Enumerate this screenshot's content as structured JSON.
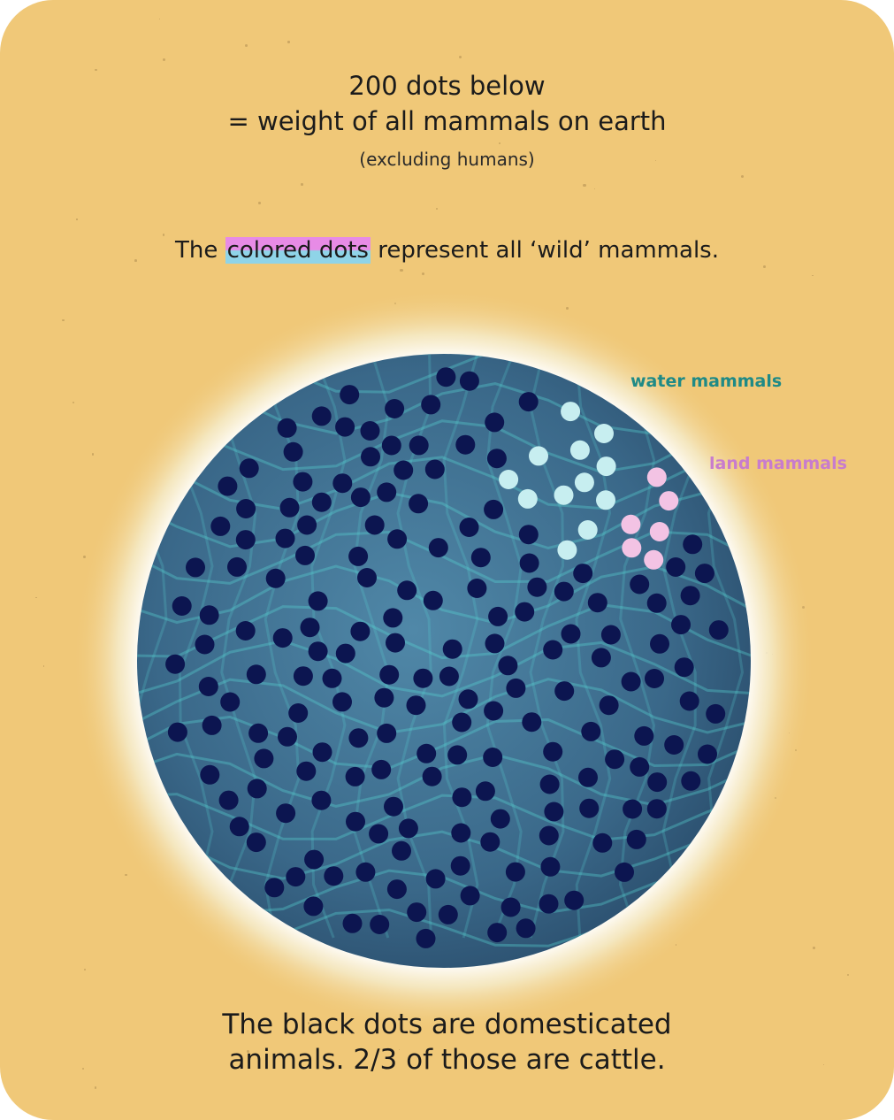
{
  "header": {
    "line1": "200 dots below",
    "line2": "= weight of all mammals on earth",
    "note": "(excluding humans)"
  },
  "intro": {
    "before": "The ",
    "highlight": "colored dots",
    "after": " represent all ‘wild’ mammals."
  },
  "legend": {
    "water": "water mammals",
    "land": "land mammals"
  },
  "footer": {
    "line1": "The black dots are domesticated",
    "line2": "animals. 2/3 of those are cattle."
  },
  "colors": {
    "background": "#f0c878",
    "globe": "#3f6e8f",
    "domestic_dot": "#0c1550",
    "water_dot": "#c7eef0",
    "land_dot": "#f3c3e4",
    "water_label": "#1f8a86",
    "land_label": "#c87ccd"
  },
  "chart_data": {
    "type": "dot-matrix",
    "total_dots": 200,
    "categories": [
      "domesticated",
      "water mammals",
      "land mammals"
    ],
    "values": [
      182,
      12,
      6
    ]
  }
}
